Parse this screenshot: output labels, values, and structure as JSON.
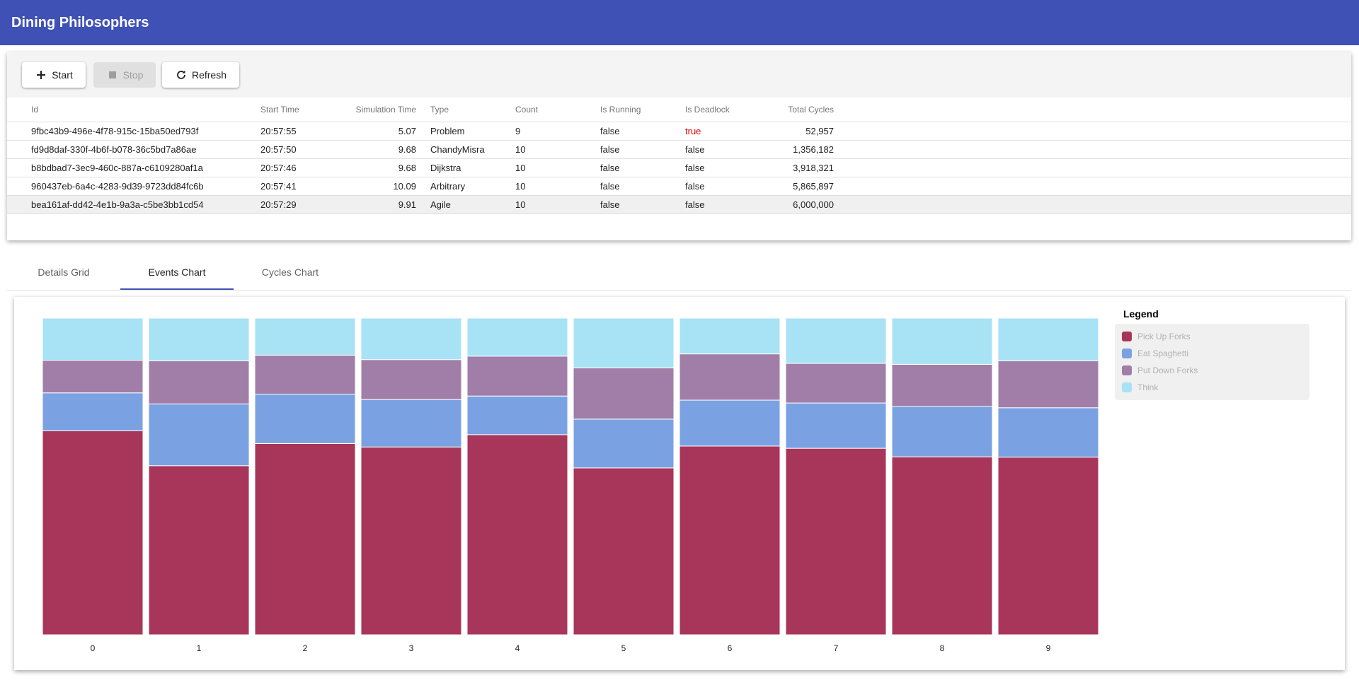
{
  "app": {
    "title": "Dining Philosophers"
  },
  "toolbar": {
    "start_label": "Start",
    "stop_label": "Stop",
    "refresh_label": "Refresh"
  },
  "grid": {
    "columns": {
      "id": "Id",
      "start_time": "Start Time",
      "simulation_time": "Simulation Time",
      "type": "Type",
      "count": "Count",
      "is_running": "Is Running",
      "is_deadlock": "Is Deadlock",
      "total_cycles": "Total Cycles"
    },
    "rows": [
      {
        "id": "9fbc43b9-496e-4f78-915c-15ba50ed793f",
        "start_time": "20:57:55",
        "simulation_time": "5.07",
        "type": "Problem",
        "count": "9",
        "is_running": "false",
        "is_deadlock": "true",
        "total_cycles": "52,957"
      },
      {
        "id": "fd9d8daf-330f-4b6f-b078-36c5bd7a86ae",
        "start_time": "20:57:50",
        "simulation_time": "9.68",
        "type": "ChandyMisra",
        "count": "10",
        "is_running": "false",
        "is_deadlock": "false",
        "total_cycles": "1,356,182"
      },
      {
        "id": "b8bdbad7-3ec9-460c-887a-c6109280af1a",
        "start_time": "20:57:46",
        "simulation_time": "9.68",
        "type": "Dijkstra",
        "count": "10",
        "is_running": "false",
        "is_deadlock": "false",
        "total_cycles": "3,918,321"
      },
      {
        "id": "960437eb-6a4c-4283-9d39-9723dd84fc6b",
        "start_time": "20:57:41",
        "simulation_time": "10.09",
        "type": "Arbitrary",
        "count": "10",
        "is_running": "false",
        "is_deadlock": "false",
        "total_cycles": "5,865,897"
      },
      {
        "id": "bea161af-dd42-4e1b-9a3a-c5be3bb1cd54",
        "start_time": "20:57:29",
        "simulation_time": "9.91",
        "type": "Agile",
        "count": "10",
        "is_running": "false",
        "is_deadlock": "false",
        "total_cycles": "6,000,000"
      }
    ]
  },
  "tabs": {
    "details": "Details Grid",
    "events": "Events Chart",
    "cycles": "Cycles Chart"
  },
  "colors": {
    "appbar": "#3f51b5",
    "deadlock_true": "#e00000"
  },
  "chart_data": {
    "type": "bar",
    "stacked": true,
    "normalized": true,
    "categories": [
      "0",
      "1",
      "2",
      "3",
      "4",
      "5",
      "6",
      "7",
      "8",
      "9"
    ],
    "series": [
      {
        "name": "Pick Up Forks",
        "color": "#a8355a",
        "values": [
          64.4,
          53.4,
          60.4,
          59.3,
          63.2,
          52.7,
          59.6,
          58.9,
          56.2,
          56.1
        ]
      },
      {
        "name": "Eat Spaghetti",
        "color": "#7aa2e3",
        "values": [
          12.0,
          19.5,
          15.6,
          15.0,
          12.2,
          15.4,
          14.5,
          14.3,
          15.9,
          15.6
        ]
      },
      {
        "name": "Put Down Forks",
        "color": "#a07ea8",
        "values": [
          10.3,
          13.6,
          12.3,
          12.6,
          12.6,
          16.2,
          14.6,
          12.5,
          13.3,
          14.8
        ]
      },
      {
        "name": "Think",
        "color": "#a8e2f5",
        "values": [
          13.3,
          13.5,
          11.7,
          13.1,
          12.0,
          15.7,
          11.3,
          14.3,
          14.6,
          13.5
        ]
      }
    ],
    "legend_title": "Legend",
    "legend_position": "right"
  }
}
